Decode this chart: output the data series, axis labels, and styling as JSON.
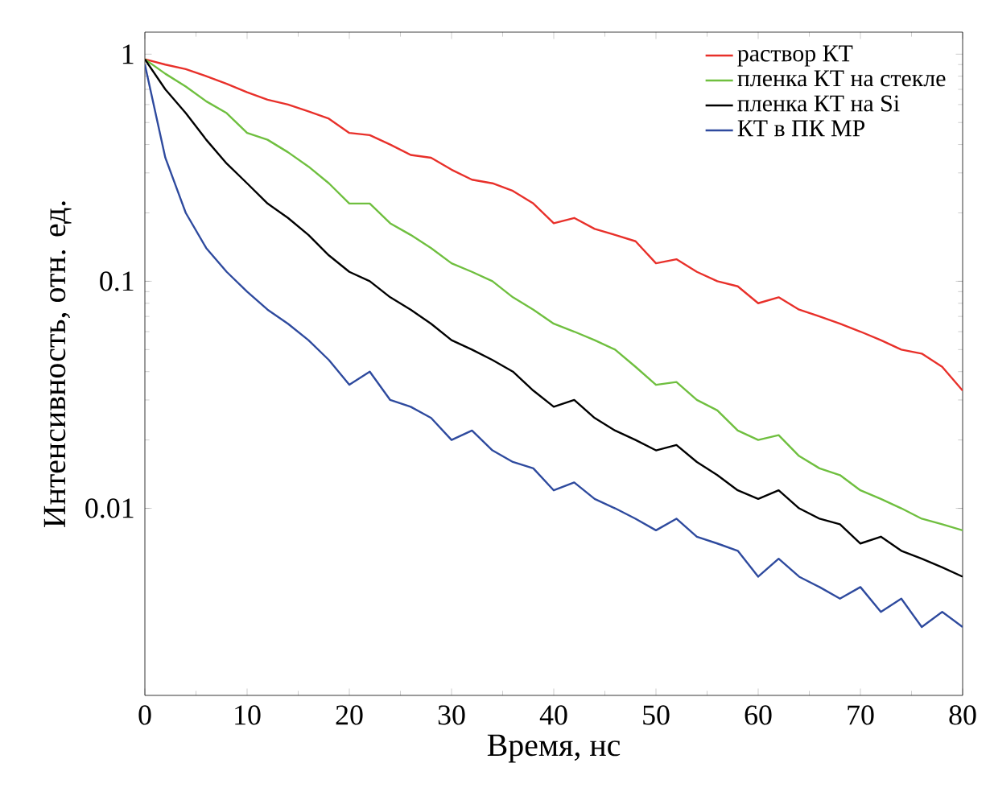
{
  "chart_data": {
    "type": "line",
    "xlabel": "Время, нс",
    "ylabel": "Интенсивность, отн. ед.",
    "log": "y",
    "xlim": [
      0,
      80
    ],
    "ylim": [
      0.0015,
      1.25
    ],
    "xticks": [
      0,
      10,
      20,
      30,
      40,
      50,
      60,
      70,
      80
    ],
    "yticks": [
      {
        "value": 0.01,
        "label": "0.01"
      },
      {
        "value": 0.1,
        "label": "0.1"
      },
      {
        "value": 1,
        "label": "1"
      }
    ],
    "legend": "top right",
    "grid": false,
    "marker": "none",
    "line_style": "solid",
    "x": [
      0,
      2,
      4,
      6,
      8,
      10,
      12,
      14,
      16,
      18,
      20,
      22,
      24,
      26,
      28,
      30,
      32,
      34,
      36,
      38,
      40,
      42,
      44,
      46,
      48,
      50,
      52,
      54,
      56,
      58,
      60,
      62,
      64,
      66,
      68,
      70,
      72,
      74,
      76,
      78,
      80
    ],
    "series": [
      {
        "name": "раствор КТ",
        "color": "#e8302a",
        "values": [
          0.95,
          0.9,
          0.86,
          0.8,
          0.74,
          0.68,
          0.63,
          0.6,
          0.56,
          0.52,
          0.45,
          0.44,
          0.4,
          0.36,
          0.35,
          0.31,
          0.28,
          0.27,
          0.25,
          0.22,
          0.18,
          0.19,
          0.17,
          0.16,
          0.15,
          0.12,
          0.125,
          0.11,
          0.1,
          0.095,
          0.08,
          0.085,
          0.075,
          0.07,
          0.065,
          0.06,
          0.055,
          0.05,
          0.048,
          0.042,
          0.033
        ]
      },
      {
        "name": "пленка КТ на стекле",
        "color": "#6fbf3f",
        "values": [
          0.95,
          0.82,
          0.72,
          0.62,
          0.55,
          0.45,
          0.42,
          0.37,
          0.32,
          0.27,
          0.22,
          0.22,
          0.18,
          0.16,
          0.14,
          0.12,
          0.11,
          0.1,
          0.085,
          0.075,
          0.065,
          0.06,
          0.055,
          0.05,
          0.042,
          0.035,
          0.036,
          0.03,
          0.027,
          0.022,
          0.02,
          0.021,
          0.017,
          0.015,
          0.014,
          0.012,
          0.011,
          0.01,
          0.009,
          0.0085,
          0.008
        ]
      },
      {
        "name": "пленка КТ на Si",
        "color": "#000000",
        "values": [
          0.95,
          0.7,
          0.55,
          0.42,
          0.33,
          0.27,
          0.22,
          0.19,
          0.16,
          0.13,
          0.11,
          0.1,
          0.085,
          0.075,
          0.065,
          0.055,
          0.05,
          0.045,
          0.04,
          0.033,
          0.028,
          0.03,
          0.025,
          0.022,
          0.02,
          0.018,
          0.019,
          0.016,
          0.014,
          0.012,
          0.011,
          0.012,
          0.01,
          0.009,
          0.0085,
          0.007,
          0.0075,
          0.0065,
          0.006,
          0.0055,
          0.005
        ]
      },
      {
        "name": "КТ в ПК МР",
        "color": "#2e4a9e",
        "values": [
          0.9,
          0.35,
          0.2,
          0.14,
          0.11,
          0.09,
          0.075,
          0.065,
          0.055,
          0.045,
          0.035,
          0.04,
          0.03,
          0.028,
          0.025,
          0.02,
          0.022,
          0.018,
          0.016,
          0.015,
          0.012,
          0.013,
          0.011,
          0.01,
          0.009,
          0.008,
          0.009,
          0.0075,
          0.007,
          0.0065,
          0.005,
          0.006,
          0.005,
          0.0045,
          0.004,
          0.0045,
          0.0035,
          0.004,
          0.003,
          0.0035,
          0.003
        ]
      }
    ]
  }
}
